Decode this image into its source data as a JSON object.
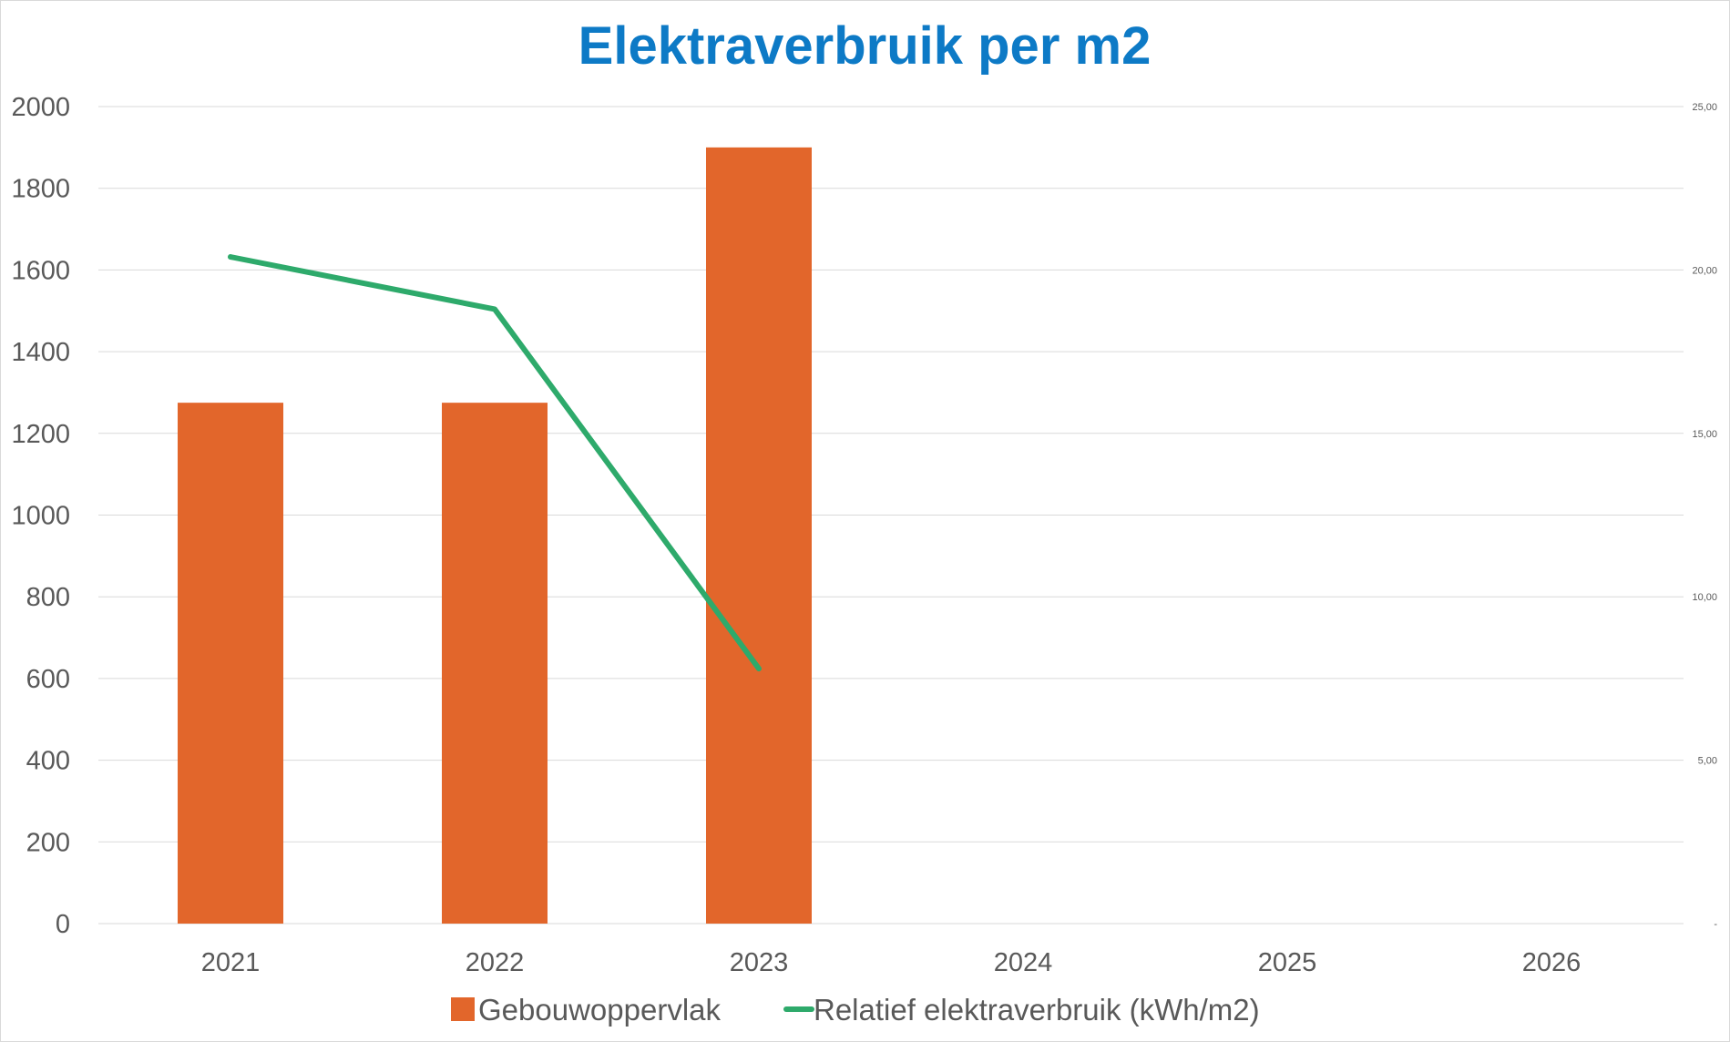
{
  "chart_data": {
    "type": "bar",
    "title": "Elektraverbruik per m2",
    "categories": [
      "2021",
      "2022",
      "2023",
      "2024",
      "2025",
      "2026"
    ],
    "series": [
      {
        "name": "Gebouwoppervlak",
        "type": "bar",
        "axis": "left",
        "color": "#e2662b",
        "values": [
          1275,
          1275,
          1900,
          null,
          null,
          null
        ]
      },
      {
        "name": "Relatief elektraverbruik (kWh/m2)",
        "type": "line",
        "axis": "right",
        "color": "#2eaa6b",
        "values": [
          20.4,
          18.8,
          7.8,
          null,
          null,
          null
        ]
      }
    ],
    "y_left": {
      "min": 0,
      "max": 2000,
      "ticks": [
        "0",
        "200",
        "400",
        "600",
        "800",
        "1000",
        "1200",
        "1400",
        "1600",
        "1800",
        "2000"
      ]
    },
    "y_right": {
      "min": 0,
      "max": 25,
      "ticks": [
        "-",
        "5,00",
        "10,00",
        "15,00",
        "20,00",
        "25,00"
      ]
    },
    "grid": true,
    "legend": "bottom"
  }
}
